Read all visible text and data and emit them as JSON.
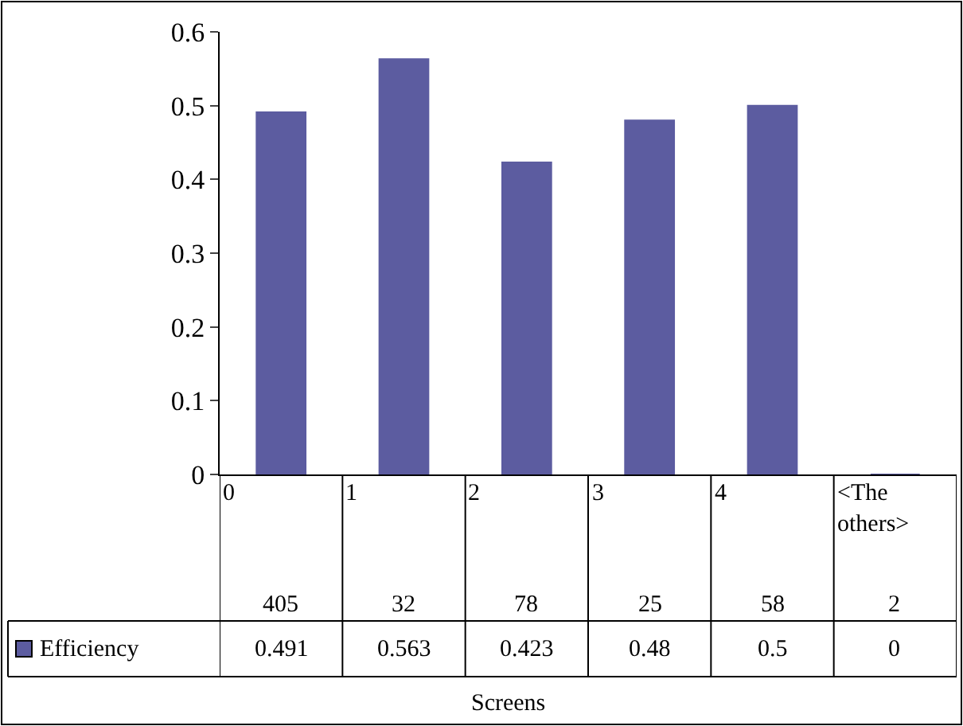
{
  "chart_data": {
    "type": "bar",
    "annotations": [
      "Screens"
    ],
    "categories": [
      "0\n405",
      "1\n32",
      "2\n78",
      "3\n25",
      "4\n58",
      "<The others>\n2"
    ],
    "series": [
      {
        "name": "Efficiency",
        "color": "#5c5ca0",
        "values": [
          0.491,
          0.563,
          0.423,
          0.48,
          0.5,
          0
        ]
      }
    ],
    "ylim": [
      0,
      0.6
    ],
    "yticks": [
      0,
      0.1,
      0.2,
      0.3,
      0.4,
      0.5,
      0.6
    ],
    "value_labels": [
      "0.491",
      "0.563",
      "0.423",
      "0.48",
      "0.5",
      "0"
    ],
    "legend": "bottom left"
  }
}
